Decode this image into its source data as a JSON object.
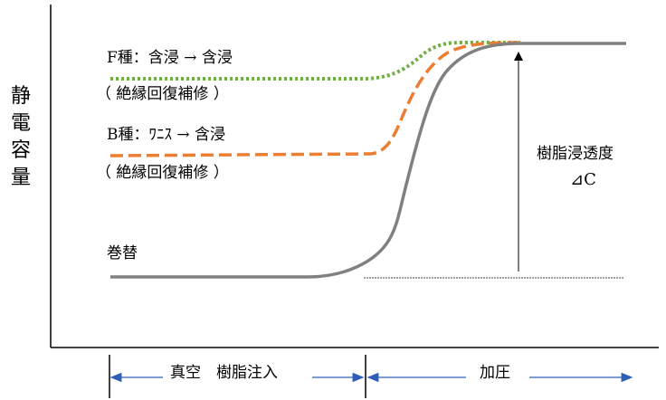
{
  "y_axis_label": "静電容量",
  "curves": {
    "f_type": {
      "label": "F種：含浸 → 含浸",
      "note": "（ 絶縁回復補修 ）",
      "color": "#70ad47"
    },
    "b_type": {
      "label": "B種：ﾜﾆｽ → 含浸",
      "note": "（ 絶縁回復補修 ）",
      "color": "#ed7d31"
    },
    "winding": {
      "label": "巻替",
      "color": "#808080"
    }
  },
  "annotation": {
    "line1": "樹脂浸透度",
    "line2": "⊿C"
  },
  "phases": {
    "vacuum": "真空　樹脂注入",
    "pressure": "加圧"
  }
}
